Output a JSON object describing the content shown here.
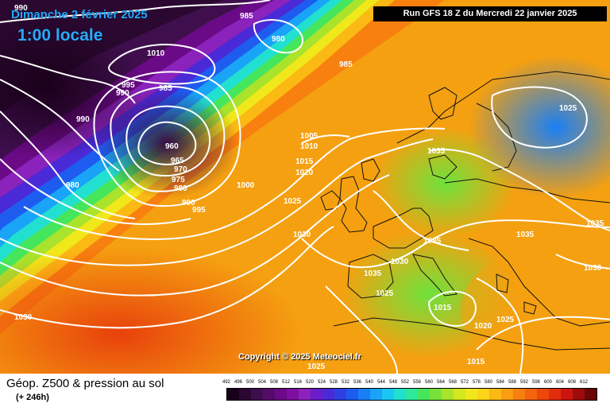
{
  "header": {
    "date": "Dimanche 2 février 2025",
    "time": "1:00 locale",
    "run": "Run GFS 18 Z du Mercredi 22 janvier 2025"
  },
  "copyright": "Copyright © 2025 Meteociel.fr",
  "legend": {
    "title": "Géop. Z500 & pression au sol",
    "subtitle": "(+ 246h)",
    "values": [
      "492",
      "496",
      "500",
      "504",
      "508",
      "512",
      "516",
      "520",
      "524",
      "528",
      "532",
      "536",
      "540",
      "544",
      "548",
      "552",
      "556",
      "560",
      "564",
      "568",
      "572",
      "576",
      "580",
      "584",
      "588",
      "592",
      "596",
      "600",
      "604",
      "608",
      "612"
    ],
    "colors": [
      "#1a001a",
      "#2d0733",
      "#3f0f4d",
      "#540b6b",
      "#6a0a86",
      "#7f0fa0",
      "#8a22bb",
      "#6a1dc9",
      "#4a2ad6",
      "#2f3fe3",
      "#1e5cf0",
      "#1a7ff5",
      "#19a4f7",
      "#1cc6f2",
      "#22e0d0",
      "#2ee89b",
      "#46e65c",
      "#78e23b",
      "#a9e32c",
      "#d3e81f",
      "#f0e81a",
      "#fcd418",
      "#fbb914",
      "#fa9d12",
      "#f7800f",
      "#f2640d",
      "#ec480c",
      "#e12d0c",
      "#cc150e",
      "#9e0b0c",
      "#6a0606"
    ]
  },
  "isobars": [
    {
      "value": "990"
    },
    {
      "value": "985"
    },
    {
      "value": "1010"
    },
    {
      "value": "980"
    },
    {
      "value": "985"
    },
    {
      "value": "995"
    },
    {
      "value": "990"
    },
    {
      "value": "985"
    },
    {
      "value": "990"
    },
    {
      "value": "960"
    },
    {
      "value": "965"
    },
    {
      "value": "970"
    },
    {
      "value": "975"
    },
    {
      "value": "980"
    },
    {
      "value": "980"
    },
    {
      "value": "990"
    },
    {
      "value": "995"
    },
    {
      "value": "1000"
    },
    {
      "value": "1005"
    },
    {
      "value": "1010"
    },
    {
      "value": "1015"
    },
    {
      "value": "1020"
    },
    {
      "value": "1025"
    },
    {
      "value": "1030"
    },
    {
      "value": "1035"
    },
    {
      "value": "1025"
    },
    {
      "value": "1035"
    },
    {
      "value": "1035"
    },
    {
      "value": "1030"
    },
    {
      "value": "1035"
    },
    {
      "value": "1035"
    },
    {
      "value": "1030"
    },
    {
      "value": "1025"
    },
    {
      "value": "1015"
    },
    {
      "value": "1020"
    },
    {
      "value": "1025"
    },
    {
      "value": "1015"
    },
    {
      "value": "1030"
    },
    {
      "value": "1025"
    }
  ]
}
